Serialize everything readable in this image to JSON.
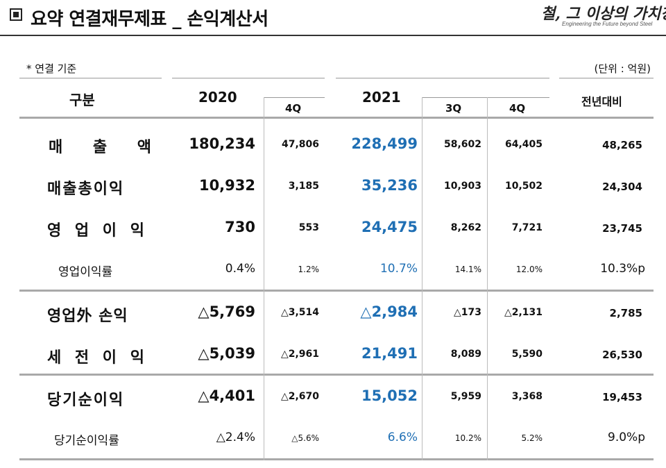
{
  "page": {
    "title": "요약 연결재무제표 _ 손익계산서",
    "brand_main": "철, 그 이상의 가치창조",
    "brand_sub": "Engineering the Future beyond Steel",
    "note": "* 연결 기준",
    "unit": "(단위 : 억원)"
  },
  "header": {
    "category": "구분",
    "y2020": "2020",
    "y2020_q": "4Q",
    "y2021": "2021",
    "y2021_q3": "3Q",
    "y2021_q4": "4Q",
    "yoy": "전년대비"
  },
  "rows": [
    {
      "label": "매   출   액",
      "v2020": "180,234",
      "q4_2020": "47,806",
      "v2021": "228,499",
      "q3_2021": "58,602",
      "q4_2021": "64,405",
      "yoy": "48,265"
    },
    {
      "label": "매출총이익",
      "v2020": "10,932",
      "q4_2020": "3,185",
      "v2021": "35,236",
      "q3_2021": "10,903",
      "q4_2021": "10,502",
      "yoy": "24,304"
    },
    {
      "label": "영 업 이 익",
      "v2020": "730",
      "q4_2020": "553",
      "v2021": "24,475",
      "q3_2021": "8,262",
      "q4_2021": "7,721",
      "yoy": "23,745"
    },
    {
      "label": "영업이익률",
      "v2020": "0.4%",
      "q4_2020": "1.2%",
      "v2021": "10.7%",
      "q3_2021": "14.1%",
      "q4_2021": "12.0%",
      "yoy": "10.3%p"
    },
    {
      "label": "영업外 손익",
      "v2020": "△5,769",
      "q4_2020": "△3,514",
      "v2021": "△2,984",
      "q3_2021": "△173",
      "q4_2021": "△2,131",
      "yoy": "2,785"
    },
    {
      "label": "세 전 이 익",
      "v2020": "△5,039",
      "q4_2020": "△2,961",
      "v2021": "21,491",
      "q3_2021": "8,089",
      "q4_2021": "5,590",
      "yoy": "26,530"
    },
    {
      "label": "당기순이익",
      "v2020": "△4,401",
      "q4_2020": "△2,670",
      "v2021": "15,052",
      "q3_2021": "5,959",
      "q4_2021": "3,368",
      "yoy": "19,453"
    },
    {
      "label": "당기순이익률",
      "v2020": "△2.4%",
      "q4_2020": "△5.6%",
      "v2021": "6.6%",
      "q3_2021": "10.2%",
      "q4_2021": "5.2%",
      "yoy": "9.0%p"
    }
  ],
  "colors": {
    "highlight": "#1f6fb4",
    "rule": "#a9a9a9"
  }
}
